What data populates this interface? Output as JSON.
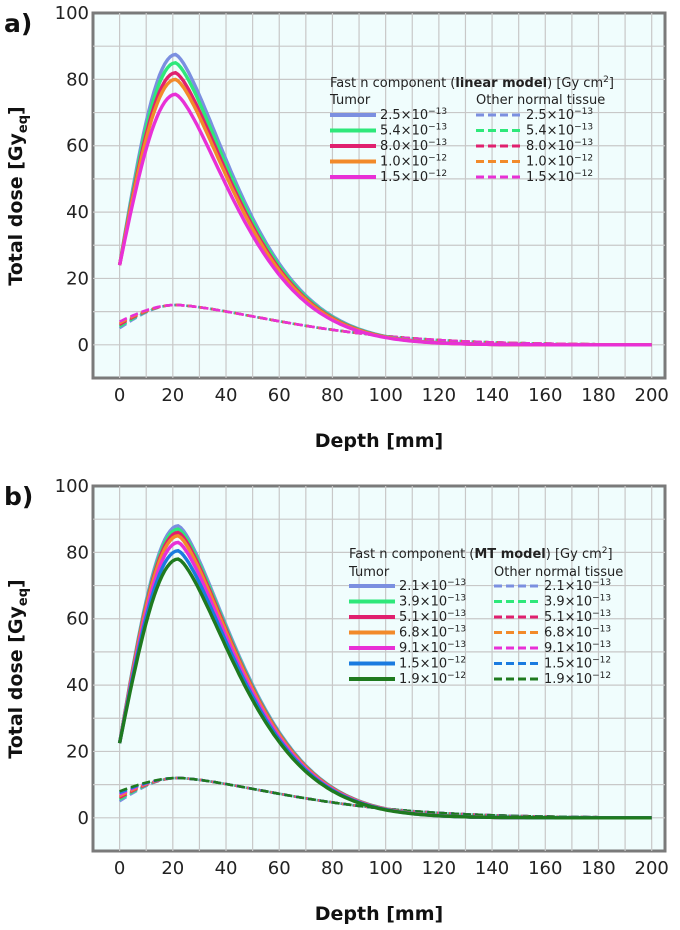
{
  "chart_data": [
    {
      "type": "line",
      "panel_label": "a)",
      "xlabel": "Depth [mm]",
      "ylabel_main": "Total dose [Gy",
      "ylabel_sub": "eq",
      "ylabel_end": "]",
      "xlim": [
        -10,
        205
      ],
      "ylim": [
        -10,
        100
      ],
      "xticks": [
        0,
        20,
        40,
        60,
        80,
        100,
        120,
        140,
        160,
        180,
        200
      ],
      "yticks": [
        0,
        20,
        40,
        60,
        80,
        100
      ],
      "legend": {
        "title_pre": "Fast n component (",
        "title_bold": "linear model",
        "title_post": ") [Gy cm",
        "title_sup": "2",
        "title_end": "]",
        "col1_header": "Tumor",
        "col2_header": "Other normal tissue"
      },
      "curve_model": {
        "entrance_depth": 0,
        "peak_depth": 21,
        "peak_width": 9,
        "falloff_scale": 33,
        "falloff_shape": 1.45,
        "normal_entrance": 5.5,
        "normal_peak": 12,
        "normal_falloff_scale": 60
      },
      "series": [
        {
          "name": "2.5×10^-13",
          "mant": "2.5×10",
          "exp": "−13",
          "color": "#7b8fe0",
          "tumor_entrance": 24,
          "tumor_peak": 87.5,
          "normal_entrance": 5.0
        },
        {
          "name": "5.4×10^-13",
          "mant": "5.4×10",
          "exp": "−13",
          "color": "#2ee87a",
          "tumor_entrance": 24,
          "tumor_peak": 85,
          "normal_entrance": 5.5
        },
        {
          "name": "8.0×10^-13",
          "mant": "8.0×10",
          "exp": "−13",
          "color": "#e0206e",
          "tumor_entrance": 24,
          "tumor_peak": 82,
          "normal_entrance": 6.0
        },
        {
          "name": "1.0×10^-12",
          "mant": "1.0×10",
          "exp": "−12",
          "color": "#f28a2a",
          "tumor_entrance": 24,
          "tumor_peak": 80,
          "normal_entrance": 6.5
        },
        {
          "name": "1.5×10^-12",
          "mant": "1.5×10",
          "exp": "−12",
          "color": "#e830d6",
          "tumor_entrance": 24,
          "tumor_peak": 75.5,
          "normal_entrance": 7.0
        }
      ]
    },
    {
      "type": "line",
      "panel_label": "b)",
      "xlabel": "Depth [mm]",
      "ylabel_main": "Total dose [Gy",
      "ylabel_sub": "eq",
      "ylabel_end": "]",
      "xlim": [
        -10,
        205
      ],
      "ylim": [
        -10,
        100
      ],
      "xticks": [
        0,
        20,
        40,
        60,
        80,
        100,
        120,
        140,
        160,
        180,
        200
      ],
      "yticks": [
        0,
        20,
        40,
        60,
        80,
        100
      ],
      "legend": {
        "title_pre": "Fast n component (",
        "title_bold": "MT model",
        "title_post": ") [Gy cm",
        "title_sup": "2",
        "title_end": "]",
        "col1_header": "Tumor",
        "col2_header": "Other normal tissue"
      },
      "curve_model": {
        "entrance_depth": 0,
        "peak_depth": 22,
        "peak_width": 9,
        "falloff_scale": 33,
        "falloff_shape": 1.45,
        "normal_entrance": 5.5,
        "normal_peak": 12,
        "normal_falloff_scale": 60
      },
      "series": [
        {
          "name": "2.1×10^-13",
          "mant": "2.1×10",
          "exp": "−13",
          "color": "#7b8fe0",
          "tumor_entrance": 22.5,
          "tumor_peak": 88,
          "normal_entrance": 5.0
        },
        {
          "name": "3.9×10^-13",
          "mant": "3.9×10",
          "exp": "−13",
          "color": "#2ee87a",
          "tumor_entrance": 22.5,
          "tumor_peak": 87,
          "normal_entrance": 5.5
        },
        {
          "name": "5.1×10^-13",
          "mant": "5.1×10",
          "exp": "−13",
          "color": "#e0206e",
          "tumor_entrance": 22.5,
          "tumor_peak": 86,
          "normal_entrance": 6.0
        },
        {
          "name": "6.8×10^-13",
          "mant": "6.8×10",
          "exp": "−13",
          "color": "#f28a2a",
          "tumor_entrance": 22.5,
          "tumor_peak": 85,
          "normal_entrance": 6.5
        },
        {
          "name": "9.1×10^-13",
          "mant": "9.1×10",
          "exp": "−13",
          "color": "#e830d6",
          "tumor_entrance": 22.5,
          "tumor_peak": 83,
          "normal_entrance": 7.0
        },
        {
          "name": "1.5×10^-12",
          "mant": "1.5×10",
          "exp": "−12",
          "color": "#1a7be0",
          "tumor_entrance": 22.5,
          "tumor_peak": 80.5,
          "normal_entrance": 7.5
        },
        {
          "name": "1.9×10^-12",
          "mant": "1.9×10",
          "exp": "−12",
          "color": "#1f7a1f",
          "tumor_entrance": 22.5,
          "tumor_peak": 78,
          "normal_entrance": 8.0
        }
      ]
    }
  ]
}
